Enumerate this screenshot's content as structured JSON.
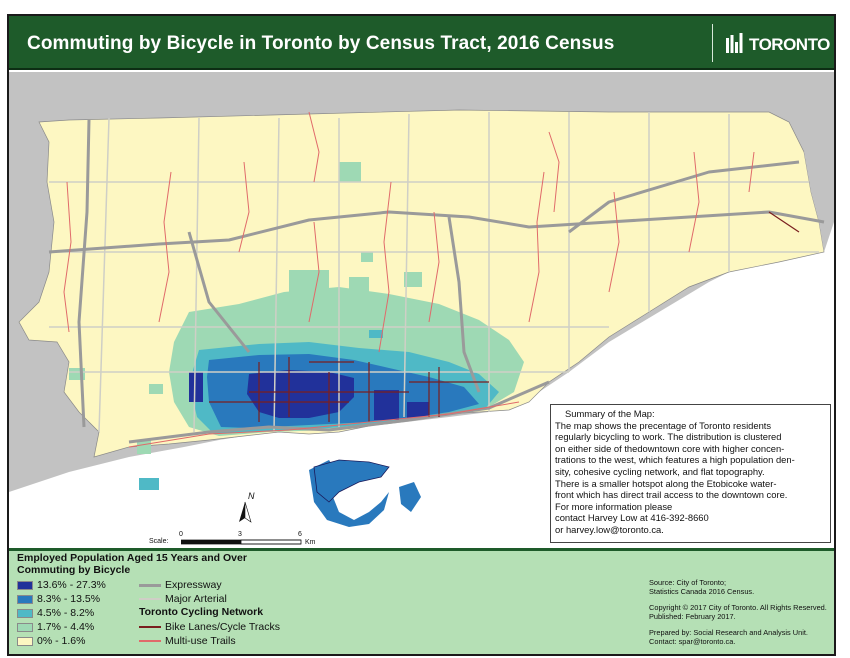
{
  "header": {
    "title": "Commuting by Bicycle in Toronto by Census Tract, 2016 Census",
    "logo_text": "TORONTO"
  },
  "colors": {
    "header_bg": "#1e5b2a",
    "legend_bg": "#b5e0b5",
    "land": "#fdf7c2",
    "water": "#ffffff",
    "outside": "#c2c2c2",
    "class_1": "#fdf7c2",
    "class_2": "#9ed9b4",
    "class_3": "#4fb9c6",
    "class_4": "#2979bd",
    "class_5": "#21319a",
    "expressway": "#9a9a9a",
    "major_arterial": "#cfcfc6",
    "bike_lanes": "#7a1f1f",
    "multi_use_trails": "#e06a6a"
  },
  "summary": {
    "title": "Summary of the Map:",
    "lines": [
      "The map shows the precentage of Toronto residents",
      "regularly bicycling to work. The distribution is clustered",
      "on either side of thedowntown core with higher concen-",
      "trations to the west, which features a high population den-",
      "sity, cohesive cycling network, and flat topography.",
      "There is a smaller hotspot along the Etobicoke water-",
      "front which has direct trail access to the downtown core.",
      "For more information please",
      "contact Harvey Low at 416-392-8660",
      "or harvey.low@toronto.ca."
    ]
  },
  "scale": {
    "label": "Scale:",
    "ticks": [
      "0",
      "3",
      "6"
    ],
    "unit": "Km"
  },
  "north": "N",
  "legend": {
    "title_line1": "Employed Population Aged 15 Years and Over",
    "title_line2": "Commuting by Bicycle",
    "classes": [
      {
        "label": "13.6% - 27.3%",
        "color": "#21319a"
      },
      {
        "label": "8.3% - 13.5%",
        "color": "#2979bd"
      },
      {
        "label": "4.5% - 8.2%",
        "color": "#4fb9c6"
      },
      {
        "label": "1.7% - 4.4%",
        "color": "#9ed9b4"
      },
      {
        "label": "0% - 1.6%",
        "color": "#fdf7c2"
      }
    ],
    "roads": [
      {
        "label": "Expressway",
        "color": "#9a9a9a"
      },
      {
        "label": "Major Arterial",
        "color": "#cfcfc6"
      }
    ],
    "network_title": "Toronto Cycling Network",
    "network": [
      {
        "label": "Bike Lanes/Cycle Tracks",
        "color": "#7a1f1f"
      },
      {
        "label": "Multi-use Trails",
        "color": "#e06a6a"
      }
    ]
  },
  "source": {
    "line1": "Source: City of Toronto;",
    "line2": "Statistics Canada 2016 Census.",
    "line3": "Copyright © 2017 City of Toronto. All Rights Reserved.",
    "line4": "Published: February 2017.",
    "line5": "Prepared by: Social Research and Analysis Unit.",
    "line6": "Contact: spar@toronto.ca."
  }
}
